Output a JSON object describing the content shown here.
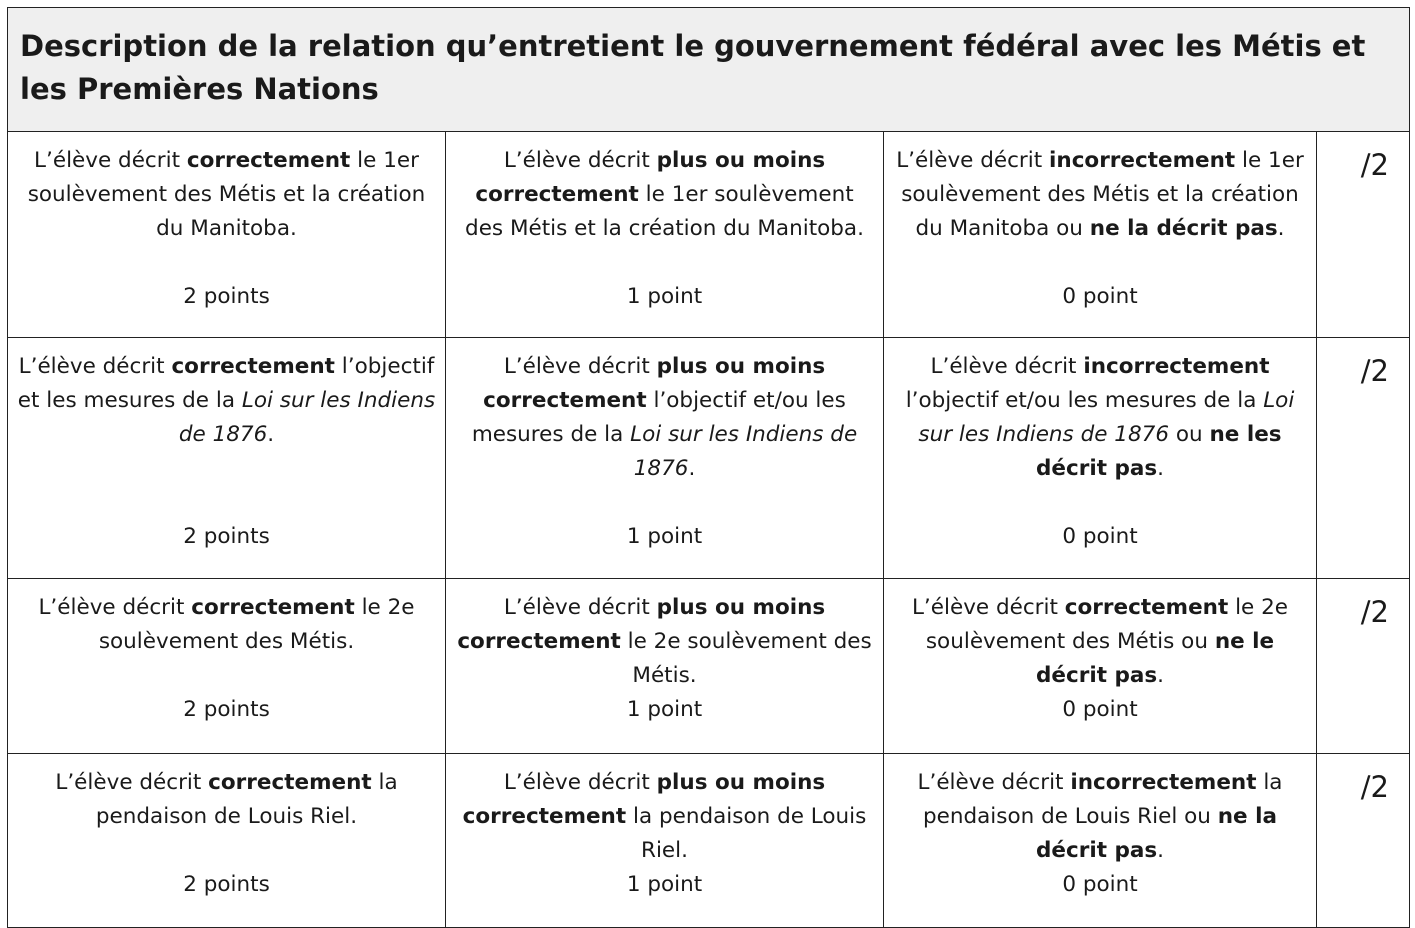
{
  "title": "Description de la relation qu’entretient le gouvernement fédéral avec les Métis et les Premières Nations",
  "rows": [
    {
      "score": "/2",
      "cells": [
        {
          "parts": [
            [
              "n",
              "L’élève décrit "
            ],
            [
              "b",
              "correctement"
            ],
            [
              "n",
              " le 1er soulèvement des Métis et la création du Manitoba."
            ]
          ],
          "gap": true,
          "points": "2 points"
        },
        {
          "parts": [
            [
              "n",
              "L’élève décrit "
            ],
            [
              "b",
              "plus ou moins correctement"
            ],
            [
              "n",
              " le 1er soulèvement des Métis et la création du Manitoba."
            ]
          ],
          "gap": false,
          "points": "1 point"
        },
        {
          "parts": [
            [
              "n",
              "L’élève décrit "
            ],
            [
              "b",
              "incorrectement"
            ],
            [
              "n",
              " le 1er soulèvement des Métis et la création du Manitoba ou "
            ],
            [
              "b",
              "ne la décrit pas"
            ],
            [
              "n",
              "."
            ]
          ],
          "gap": false,
          "points": "0 point"
        }
      ]
    },
    {
      "score": "/2",
      "cells": [
        {
          "parts": [
            [
              "n",
              "L’élève décrit "
            ],
            [
              "b",
              "correctement"
            ],
            [
              "n",
              " l’objectif et les mesures de la "
            ],
            [
              "i",
              "Loi sur les Indiens de 1876"
            ],
            [
              "n",
              "."
            ]
          ],
          "gap": true,
          "gap2": true,
          "points": "2 points"
        },
        {
          "parts": [
            [
              "n",
              "L’élève décrit "
            ],
            [
              "b",
              "plus ou moins correctement"
            ],
            [
              "n",
              " l’objectif et/ou les mesures de la "
            ],
            [
              "i",
              "Loi sur les Indiens de 1876"
            ],
            [
              "n",
              "."
            ]
          ],
          "gap": true,
          "points": "1 point"
        },
        {
          "parts": [
            [
              "n",
              "L’élève décrit "
            ],
            [
              "b",
              "incorrectement"
            ],
            [
              "n",
              " l’objectif et/ou les mesures de la "
            ],
            [
              "i",
              "Loi sur les Indiens de 1876"
            ],
            [
              "n",
              " ou "
            ],
            [
              "b",
              "ne les décrit pas"
            ],
            [
              "n",
              "."
            ]
          ],
          "gap": true,
          "points": "0 point"
        }
      ]
    },
    {
      "score": "/2",
      "cells": [
        {
          "parts": [
            [
              "n",
              "L’élève décrit "
            ],
            [
              "b",
              "correctement"
            ],
            [
              "n",
              " le 2e soulèvement des Métis."
            ]
          ],
          "gap": true,
          "points": "2 points"
        },
        {
          "parts": [
            [
              "n",
              "L’élève décrit "
            ],
            [
              "b",
              "plus ou moins correctement"
            ],
            [
              "n",
              " le 2e soulèvement des Métis."
            ]
          ],
          "gap": false,
          "points": "1 point"
        },
        {
          "parts": [
            [
              "n",
              "L’élève décrit "
            ],
            [
              "b",
              "correctement"
            ],
            [
              "n",
              " le 2e soulèvement des Métis ou "
            ],
            [
              "b",
              "ne le décrit pas"
            ],
            [
              "n",
              "."
            ]
          ],
          "gap": false,
          "points": "0 point"
        }
      ]
    },
    {
      "score": "/2",
      "cells": [
        {
          "parts": [
            [
              "n",
              "L’élève décrit "
            ],
            [
              "b",
              "correctement"
            ],
            [
              "n",
              " la pendaison de Louis Riel."
            ]
          ],
          "gap": true,
          "points": "2 points"
        },
        {
          "parts": [
            [
              "n",
              "L’élève décrit "
            ],
            [
              "b",
              "plus ou moins correctement"
            ],
            [
              "n",
              " la pendaison de Louis Riel."
            ]
          ],
          "gap": false,
          "points": "1 point"
        },
        {
          "parts": [
            [
              "n",
              "L’élève décrit "
            ],
            [
              "b",
              "incorrectement"
            ],
            [
              "n",
              " la pendaison de Louis Riel ou "
            ],
            [
              "b",
              "ne la décrit pas"
            ],
            [
              "n",
              "."
            ]
          ],
          "gap": false,
          "points": "0 point"
        }
      ]
    }
  ]
}
